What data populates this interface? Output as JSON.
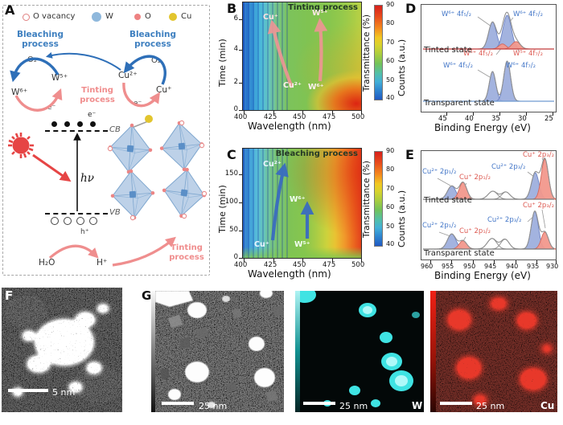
{
  "panels": {
    "a": "A",
    "b": "B",
    "c": "C",
    "d": "D",
    "e": "E",
    "f": "F",
    "g": "G"
  },
  "panel_a": {
    "legend": [
      {
        "symbol": "open-pink-circle",
        "label": "O vacancy"
      },
      {
        "symbol": "blue-circle",
        "label": "W"
      },
      {
        "symbol": "pink-circle",
        "label": "O"
      },
      {
        "symbol": "yellow-circle",
        "label": "Cu"
      }
    ],
    "labels": {
      "bleaching_left": "Bleaching process",
      "bleaching_right": "Bleaching process",
      "o2_left": "O₂",
      "o2_right": "O₂",
      "w5": "W⁵⁺",
      "w6": "W⁶⁺",
      "cu2": "Cu²⁺",
      "cu1": "Cu⁺",
      "e_left": "e⁻",
      "e_right": "e⁻",
      "e_cb": "e⁻",
      "tinting_mid": "Tinting process",
      "tinting_bottom": "Tinting process",
      "cb": "CB",
      "vb": "VB",
      "hv": "hν",
      "h_plus": "h⁺",
      "h2o": "H₂O",
      "h_ion": "H⁺"
    }
  },
  "colorbar": {
    "label": "Transmittance (%)",
    "ticks": [
      "90",
      "80",
      "70",
      "60",
      "50",
      "40"
    ]
  },
  "panel_b": {
    "title": "Tinting process",
    "xlabel": "Wavelength (nm)",
    "ylabel": "Time (min)",
    "x_ticks": [
      "400",
      "425",
      "450",
      "475",
      "500"
    ],
    "y_ticks": [
      "6",
      "4",
      "2",
      "0"
    ],
    "map_labels": {
      "cu1": "Cu⁺",
      "w5": "W⁵⁺",
      "cu2": "Cu²⁺",
      "w6": "W⁶⁺"
    }
  },
  "panel_c": {
    "title": "Bleaching process",
    "xlabel": "Wavelength (nm)",
    "ylabel": "Time (min)",
    "x_ticks": [
      "400",
      "425",
      "450",
      "475",
      "500"
    ],
    "y_ticks": [
      "150",
      "100",
      "50",
      "0"
    ],
    "map_labels": {
      "cu2": "Cu²⁺",
      "cu1": "Cu⁺",
      "w5": "W⁵⁺",
      "w6": "W⁶⁺"
    }
  },
  "panel_d": {
    "xlabel": "Binding Energy (eV)",
    "ylabel": "Counts (a.u.)",
    "x_ticks": [
      "45",
      "40",
      "35",
      "30",
      "25"
    ],
    "states": {
      "tinted": "Tinted state",
      "transparent": "Transparent state"
    },
    "peak_labels": {
      "w6_52_t": "W⁶⁺ 4f₅/₂",
      "w6_72_t": "W⁶⁺ 4f₇/₂",
      "w5_52": "W⁵⁺ 4f₅/₂",
      "w5_72": "W⁵⁺ 4f₇/₂",
      "w6_52_b": "W⁶⁺ 4f₅/₂",
      "w6_72_b": "W⁶⁺ 4f₇/₂"
    }
  },
  "panel_e": {
    "xlabel": "Binding Energy (eV)",
    "ylabel": "Counts (a.u.)",
    "x_ticks": [
      "960",
      "955",
      "950",
      "945",
      "940",
      "935",
      "930"
    ],
    "states": {
      "tinted": "Tinted state",
      "transparent": "Transparent state"
    },
    "peak_labels": {
      "cu2_12_t": "Cu²⁺ 2p₁/₂",
      "cu1_12_t": "Cu⁺ 2p₁/₂",
      "cu2_32_t": "Cu²⁺ 2p₃/₂",
      "cu1_32_t": "Cu⁺ 2p₃/₂",
      "cu2_12_b": "Cu²⁺ 2p₁/₂",
      "cu1_12_b": "Cu⁺ 2p₁/₂",
      "cu2_32_b": "Cu²⁺ 2p₃/₂",
      "cu1_32_b": "Cu⁺ 2p₃/₂"
    }
  },
  "panel_f": {
    "scalebar": "5 nm"
  },
  "panel_g": {
    "images": [
      {
        "scalebar": "25 nm",
        "tag": ""
      },
      {
        "scalebar": "25 nm",
        "tag": "W"
      },
      {
        "scalebar": "25 nm",
        "tag": "Cu"
      }
    ]
  },
  "chart_data": [
    {
      "type": "heatmap",
      "panel": "B",
      "title": "Tinting process",
      "xlabel": "Wavelength (nm)",
      "x_range": [
        400,
        500
      ],
      "ylabel": "Time (min)",
      "y_range": [
        0,
        7
      ],
      "colorbar": {
        "label": "Transmittance (%)",
        "range": [
          40,
          90
        ]
      },
      "grid_wavelength_nm": [
        400,
        425,
        450,
        475,
        500
      ],
      "grid_time_min": [
        0,
        2,
        4,
        6
      ],
      "transmittance_pct": [
        [
          44,
          52,
          68,
          80,
          88
        ],
        [
          45,
          51,
          66,
          73,
          80
        ],
        [
          46,
          53,
          65,
          70,
          72
        ],
        [
          48,
          55,
          66,
          68,
          70
        ]
      ],
      "annotation_arrows": [
        {
          "from": "Cu²⁺",
          "to": "Cu⁺"
        },
        {
          "from": "W⁶⁺",
          "to": "W⁵⁺"
        }
      ]
    },
    {
      "type": "heatmap",
      "panel": "C",
      "title": "Bleaching process",
      "xlabel": "Wavelength (nm)",
      "x_range": [
        400,
        500
      ],
      "ylabel": "Time (min)",
      "y_range": [
        0,
        195
      ],
      "colorbar": {
        "label": "Transmittance (%)",
        "range": [
          40,
          90
        ]
      },
      "grid_wavelength_nm": [
        400,
        425,
        450,
        475,
        500
      ],
      "grid_time_min": [
        0,
        50,
        100,
        150
      ],
      "transmittance_pct": [
        [
          46,
          56,
          68,
          74,
          78
        ],
        [
          47,
          57,
          70,
          79,
          85
        ],
        [
          48,
          58,
          71,
          81,
          87
        ],
        [
          49,
          59,
          72,
          82,
          89
        ]
      ],
      "annotation_arrows": [
        {
          "from": "Cu⁺",
          "to": "Cu²⁺"
        },
        {
          "from": "W⁵⁺",
          "to": "W⁶⁺"
        }
      ]
    },
    {
      "type": "xps",
      "panel": "D",
      "element": "W 4f",
      "target": "xps-d",
      "x_axis": {
        "ev_left": 50.0,
        "ev_right": 24.3,
        "ticks": [
          45,
          40,
          35,
          30,
          25
        ]
      },
      "spectra": [
        {
          "state": "Tinted state",
          "baseline_y": 55,
          "amp": 42,
          "baseline_color": "#c23b3b",
          "peaks": [
            {
              "assignment": "W⁶⁺ 4f₅/₂",
              "center_ev": 36.4,
              "sigma_ev": 0.75,
              "height": 0.8,
              "species": "blue"
            },
            {
              "assignment": "W⁶⁺ 4f₇/₂",
              "center_ev": 33.6,
              "sigma_ev": 0.8,
              "height": 1.0,
              "species": "blue"
            },
            {
              "assignment": "W⁵⁺ 4f₅/₂",
              "center_ev": 34.5,
              "sigma_ev": 0.7,
              "height": 0.15,
              "species": "red"
            },
            {
              "assignment": "W⁵⁺ 4f₇/₂",
              "center_ev": 31.9,
              "sigma_ev": 0.8,
              "height": 0.22,
              "species": "red"
            }
          ]
        },
        {
          "state": "Transparent state",
          "baseline_y": 120,
          "amp": 50,
          "baseline_color": "#6f9ad0",
          "peaks": [
            {
              "assignment": "W⁶⁺ 4f₅/₂",
              "center_ev": 36.4,
              "sigma_ev": 0.62,
              "height": 0.74,
              "species": "blue"
            },
            {
              "assignment": "W⁶⁺ 4f₇/₂",
              "center_ev": 33.6,
              "sigma_ev": 0.66,
              "height": 1.0,
              "species": "blue"
            }
          ]
        }
      ]
    },
    {
      "type": "xps",
      "panel": "E",
      "element": "Cu 2p",
      "target": "xps-e",
      "x_axis": {
        "ev_left": 962.3,
        "ev_right": 930.3,
        "ticks": [
          960,
          955,
          950,
          945,
          940,
          935,
          930
        ]
      },
      "spectra": [
        {
          "state": "Tinted state",
          "baseline_y": 60,
          "amp": 50,
          "baseline_color": "#7a7a7a",
          "peaks": [
            {
              "assignment": "Cu²⁺ 2p₁/₂",
              "center_ev": 955.1,
              "sigma_ev": 1.0,
              "height": 0.33,
              "species": "blue"
            },
            {
              "assignment": "Cu⁺ 2p₁/₂",
              "center_ev": 952.4,
              "sigma_ev": 0.9,
              "height": 0.42,
              "species": "red"
            },
            {
              "assignment": "satellite",
              "center_ev": 945.3,
              "sigma_ev": 1.1,
              "height": 0.2,
              "species": "gray"
            },
            {
              "assignment": "satellite",
              "center_ev": 942.2,
              "sigma_ev": 1.0,
              "height": 0.18,
              "species": "gray"
            },
            {
              "assignment": "Cu²⁺ 2p₃/₂",
              "center_ev": 935.2,
              "sigma_ev": 0.9,
              "height": 0.66,
              "species": "blue"
            },
            {
              "assignment": "Cu⁺ 2p₃/₂",
              "center_ev": 932.9,
              "sigma_ev": 0.85,
              "height": 1.0,
              "species": "red"
            }
          ]
        },
        {
          "state": "Transparent state",
          "baseline_y": 122,
          "amp": 47,
          "baseline_color": "#7a7a7a",
          "peaks": [
            {
              "assignment": "Cu²⁺ 2p₁/₂",
              "center_ev": 955.1,
              "sigma_ev": 1.0,
              "height": 0.4,
              "species": "blue"
            },
            {
              "assignment": "Cu⁺ 2p₁/₂",
              "center_ev": 952.4,
              "sigma_ev": 0.9,
              "height": 0.22,
              "species": "red"
            },
            {
              "assignment": "satellite",
              "center_ev": 945.5,
              "sigma_ev": 1.1,
              "height": 0.28,
              "species": "gray"
            },
            {
              "assignment": "satellite",
              "center_ev": 942.4,
              "sigma_ev": 1.0,
              "height": 0.26,
              "species": "gray"
            },
            {
              "assignment": "Cu²⁺ 2p₃/₂",
              "center_ev": 935.3,
              "sigma_ev": 0.85,
              "height": 1.0,
              "species": "blue"
            },
            {
              "assignment": "Cu⁺ 2p₃/₂",
              "center_ev": 932.9,
              "sigma_ev": 0.85,
              "height": 0.45,
              "species": "red"
            }
          ]
        }
      ]
    }
  ]
}
